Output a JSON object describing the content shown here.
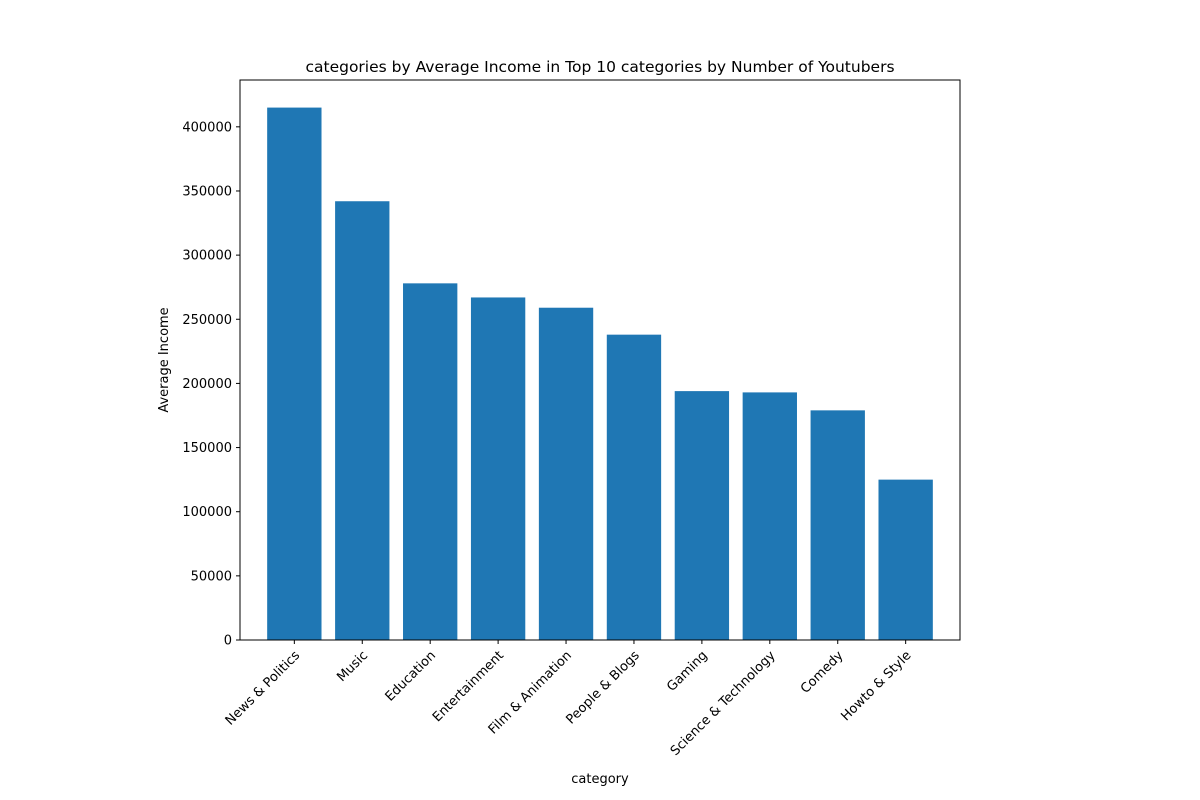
{
  "chart_data": {
    "type": "bar",
    "title": "categories by Average Income in Top 10 categories by Number of Youtubers",
    "xlabel": "category",
    "ylabel": "Average Income",
    "categories": [
      "News & Politics",
      "Music",
      "Education",
      "Entertainment",
      "Film & Animation",
      "People & Blogs",
      "Gaming",
      "Science & Technology",
      "Comedy",
      "Howto & Style"
    ],
    "values": [
      415000,
      342000,
      278000,
      267000,
      259000,
      238000,
      194000,
      193000,
      179000,
      125000
    ],
    "ylim": [
      0,
      436500
    ],
    "yticks": [
      0,
      50000,
      100000,
      150000,
      200000,
      250000,
      300000,
      350000,
      400000
    ],
    "bar_color": "#1f77b4",
    "grid": false
  }
}
